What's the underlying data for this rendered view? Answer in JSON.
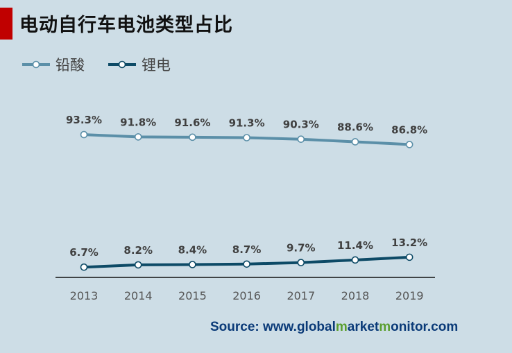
{
  "title": "电动自行车电池类型占比",
  "source": {
    "prefix": "Source: www.",
    "p1": "global",
    "p2": "m",
    "p3": "arket",
    "p4": "m",
    "p5": "onitor",
    "suffix": ".com"
  },
  "colors": {
    "lead_acid": "#5b8fa8",
    "lithium": "#0d4a66",
    "title_bar": "#c00000",
    "background": "#cddde6"
  },
  "chart_data": {
    "type": "line",
    "x": [
      "2013",
      "2014",
      "2015",
      "2016",
      "2017",
      "2018",
      "2019"
    ],
    "series": [
      {
        "name": "铅酸",
        "values": [
          93.3,
          91.8,
          91.6,
          91.3,
          90.3,
          88.6,
          86.8
        ],
        "labels": [
          "93.3%",
          "91.8%",
          "91.6%",
          "91.3%",
          "90.3%",
          "88.6%",
          "86.8%"
        ],
        "color": "#5b8fa8"
      },
      {
        "name": "锂电",
        "values": [
          6.7,
          8.2,
          8.4,
          8.7,
          9.7,
          11.4,
          13.2
        ],
        "labels": [
          "6.7%",
          "8.2%",
          "8.4%",
          "8.7%",
          "9.7%",
          "11.4%",
          "13.2%"
        ],
        "color": "#0d4a66"
      }
    ],
    "ylim": [
      0,
      100
    ],
    "grid": false,
    "legend": "top-left",
    "data_labels": true
  }
}
